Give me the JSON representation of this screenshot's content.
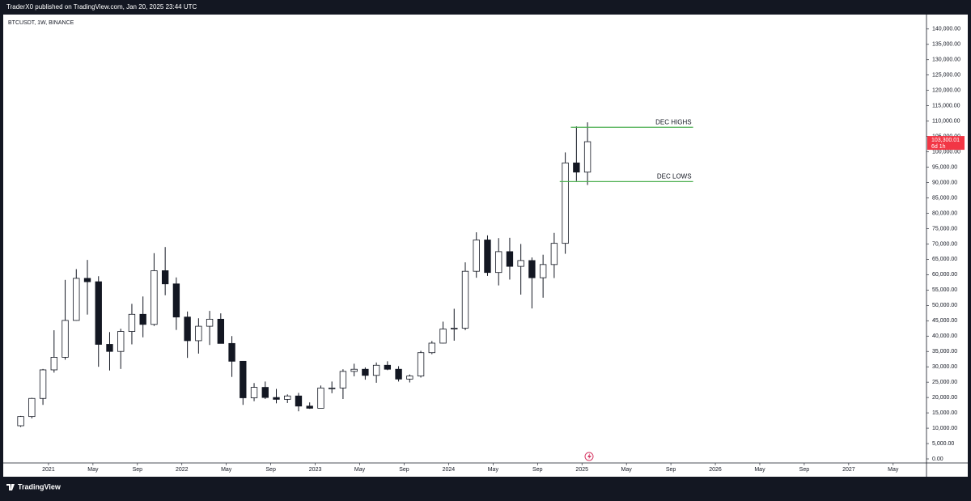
{
  "header": {
    "publisher": "TraderX0 published on TradingView.com, Jan 20, 2025 23:44 UTC"
  },
  "footer": {
    "brand": "TradingView"
  },
  "chart_data": {
    "type": "candlestick",
    "title": "BTCUSDT, 1W, BINANCE",
    "color": "#131722",
    "x": [
      "2020-10",
      "2020-11",
      "2020-12",
      "2021-01",
      "2021-02",
      "2021-03",
      "2021-04",
      "2021-05",
      "2021-06",
      "2021-07",
      "2021-08",
      "2021-09",
      "2021-10",
      "2021-11",
      "2021-12",
      "2022-01",
      "2022-02",
      "2022-03",
      "2022-04",
      "2022-05",
      "2022-06",
      "2022-07",
      "2022-08",
      "2022-09",
      "2022-10",
      "2022-11",
      "2022-12",
      "2023-01",
      "2023-02",
      "2023-03",
      "2023-04",
      "2023-05",
      "2023-06",
      "2023-07",
      "2023-08",
      "2023-09",
      "2023-10",
      "2023-11",
      "2023-12",
      "2024-01",
      "2024-02",
      "2024-03",
      "2024-04",
      "2024-05",
      "2024-06",
      "2024-07",
      "2024-08",
      "2024-09",
      "2024-10",
      "2024-11",
      "2024-12",
      "2025-01"
    ],
    "open": [
      10800,
      13800,
      19700,
      29000,
      33100,
      45100,
      58800,
      57700,
      37300,
      35000,
      41500,
      47100,
      43800,
      61300,
      57000,
      46200,
      38500,
      43200,
      45500,
      37600,
      31800,
      19900,
      23300,
      20000,
      19400,
      20500,
      17200,
      16500,
      23100,
      23100,
      28500,
      29200,
      27200,
      30500,
      29200,
      26000,
      27000,
      34600,
      37700,
      42300,
      42600,
      61100,
      71300,
      60700,
      67500,
      62700,
      64600,
      59000,
      63300,
      70200,
      96400,
      93400
    ],
    "high": [
      14000,
      19900,
      29300,
      41900,
      58300,
      61800,
      64800,
      59500,
      41300,
      42400,
      50500,
      52900,
      67000,
      69000,
      59100,
      48000,
      45800,
      48200,
      47400,
      40000,
      31900,
      24700,
      25200,
      22800,
      21000,
      21500,
      18400,
      23900,
      25200,
      29200,
      31000,
      29800,
      31400,
      31800,
      30200,
      27500,
      35200,
      38400,
      44700,
      48900,
      64000,
      73800,
      72800,
      71900,
      72000,
      70000,
      65600,
      66500,
      73600,
      99800,
      108300,
      109600
    ],
    "low": [
      10400,
      13200,
      17600,
      28100,
      32300,
      45000,
      47000,
      30000,
      28800,
      29300,
      37300,
      39600,
      43300,
      53300,
      42000,
      32900,
      34300,
      37100,
      37600,
      26700,
      17600,
      18800,
      19500,
      18100,
      18200,
      15500,
      16300,
      16500,
      21400,
      19500,
      26900,
      25800,
      24800,
      28900,
      25200,
      24900,
      26500,
      34100,
      37600,
      38500,
      41900,
      59000,
      59600,
      56500,
      58400,
      53500,
      49000,
      52500,
      58900,
      66800,
      90500,
      89200
    ],
    "close": [
      13800,
      19700,
      29000,
      33100,
      45100,
      58800,
      57700,
      37300,
      35000,
      41500,
      47100,
      43800,
      61300,
      57000,
      46200,
      38500,
      43200,
      45500,
      37600,
      31800,
      19900,
      23300,
      20000,
      19400,
      20500,
      17200,
      16500,
      23100,
      23100,
      28500,
      29200,
      27200,
      30500,
      29200,
      26000,
      27000,
      34600,
      37700,
      42300,
      42600,
      61100,
      71300,
      60700,
      67500,
      62700,
      64600,
      59000,
      63300,
      70200,
      96400,
      93400,
      103300
    ],
    "xlim": [
      "2020-09",
      "2027-08"
    ],
    "xticks": [
      {
        "value": "2021-01",
        "label": "2021"
      },
      {
        "value": "2021-05",
        "label": "May"
      },
      {
        "value": "2021-09",
        "label": "Sep"
      },
      {
        "value": "2022-01",
        "label": "2022"
      },
      {
        "value": "2022-05",
        "label": "May"
      },
      {
        "value": "2022-09",
        "label": "Sep"
      },
      {
        "value": "2023-01",
        "label": "2023"
      },
      {
        "value": "2023-05",
        "label": "May"
      },
      {
        "value": "2023-09",
        "label": "Sep"
      },
      {
        "value": "2024-01",
        "label": "2024"
      },
      {
        "value": "2024-05",
        "label": "May"
      },
      {
        "value": "2024-09",
        "label": "Sep"
      },
      {
        "value": "2025-01",
        "label": "2025"
      },
      {
        "value": "2025-05",
        "label": "May"
      },
      {
        "value": "2025-09",
        "label": "Sep"
      },
      {
        "value": "2026-01",
        "label": "2026"
      },
      {
        "value": "2026-05",
        "label": "May"
      },
      {
        "value": "2026-09",
        "label": "Sep"
      },
      {
        "value": "2027-01",
        "label": "2027"
      },
      {
        "value": "2027-05",
        "label": "May"
      }
    ],
    "ylim": [
      0,
      144700
    ],
    "yticks": [
      {
        "value": 0,
        "label": "0.00"
      },
      {
        "value": 5000,
        "label": "5,000.00"
      },
      {
        "value": 10000,
        "label": "10,000.00"
      },
      {
        "value": 15000,
        "label": "15,000.00"
      },
      {
        "value": 20000,
        "label": "20,000.00"
      },
      {
        "value": 25000,
        "label": "25,000.00"
      },
      {
        "value": 30000,
        "label": "30,000.00"
      },
      {
        "value": 35000,
        "label": "35,000.00"
      },
      {
        "value": 40000,
        "label": "40,000.00"
      },
      {
        "value": 45000,
        "label": "45,000.00"
      },
      {
        "value": 50000,
        "label": "50,000.00"
      },
      {
        "value": 55000,
        "label": "55,000.00"
      },
      {
        "value": 60000,
        "label": "60,000.00"
      },
      {
        "value": 65000,
        "label": "65,000.00"
      },
      {
        "value": 70000,
        "label": "70,000.00"
      },
      {
        "value": 75000,
        "label": "75,000.00"
      },
      {
        "value": 80000,
        "label": "80,000.00"
      },
      {
        "value": 85000,
        "label": "85,000.00"
      },
      {
        "value": 90000,
        "label": "90,000.00"
      },
      {
        "value": 95000,
        "label": "95,000.00"
      },
      {
        "value": 100000,
        "label": "100,000.00"
      },
      {
        "value": 105000,
        "label": "105,000.00"
      },
      {
        "value": 110000,
        "label": "110,000.00"
      },
      {
        "value": 115000,
        "label": "115,000.00"
      },
      {
        "value": 120000,
        "label": "120,000.00"
      },
      {
        "value": 125000,
        "label": "125,000.00"
      },
      {
        "value": 130000,
        "label": "130,000.00"
      },
      {
        "value": 135000,
        "label": "135,000.00"
      },
      {
        "value": 140000,
        "label": "140,000.00"
      }
    ],
    "last_price": {
      "value": 103300.01,
      "label": "103,300.01",
      "countdown": "6d 1h",
      "color": "#f23645"
    },
    "levels": [
      {
        "label": "DEC HIGHS",
        "value": 108000,
        "from": "2024-12",
        "to": "2025-11",
        "color": "#4caf50"
      },
      {
        "label": "DEC LOWS",
        "value": 90300,
        "from": "2024-11",
        "to": "2025-11",
        "color": "#4caf50"
      }
    ]
  }
}
